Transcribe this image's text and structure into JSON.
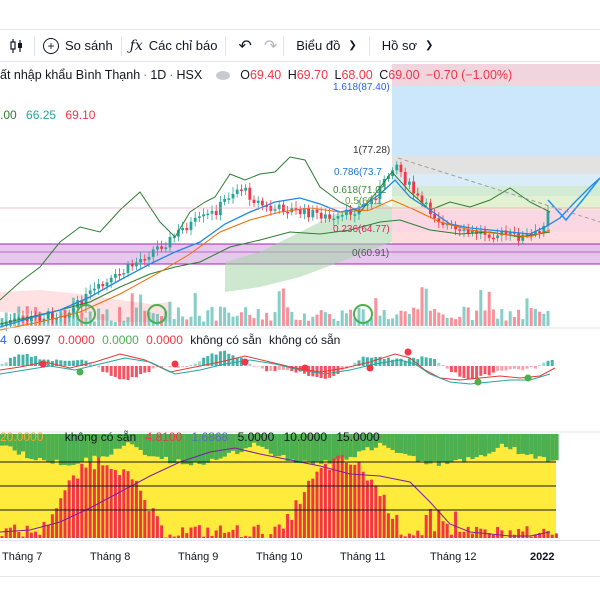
{
  "toolbar": {
    "compare_label": "So sánh",
    "indicators_label": "Các chỉ báo",
    "chart_type_label": "Biểu đồ",
    "profile_label": "Hồ sơ"
  },
  "legend": {
    "symbol_name": "ất nhập khẩu Bình Thạnh",
    "interval": "1D",
    "exchange": "HSX",
    "open_label": "O",
    "open": "69.40",
    "high_label": "H",
    "high": "69.70",
    "low_label": "L",
    "low": "68.00",
    "close_label": "C",
    "close": "69.00",
    "change": "−0.70 (−1.00%)"
  },
  "overlay_values": {
    "v1": ".00",
    "v2": "66.25",
    "v3": "69.10"
  },
  "fib_labels": {
    "f1618": "1.618(87.40)",
    "f1": "1(77.28)",
    "f786": "0.786(73.7",
    "f618": "0.618(71.02",
    "f5": "0.5(69.1",
    "f236": "0.236(64.77)",
    "f0": "0(60.91)"
  },
  "macd_legend": {
    "a": "4",
    "b": "0.6997",
    "c": "0.0000",
    "d": "0.0000",
    "e": "0.0000",
    "f": "không có sẵn",
    "g": "không có sẵn"
  },
  "osc_legend": {
    "a": "20.0000",
    "b": "không có sẵn",
    "c": "4.8100",
    "d": "1.6868",
    "e": "5.0000",
    "f": "10.0000",
    "g": "15.0000"
  },
  "x_axis": {
    "labels": [
      "Tháng 7",
      "Tháng 8",
      "Tháng 9",
      "Tháng 10",
      "Tháng 11",
      "Tháng 12",
      "2022"
    ]
  },
  "colors": {
    "up": "#26a69a",
    "down": "#f23645",
    "fib_blue": "#2962ff",
    "purple_band": "#9c27b0",
    "osc_green": "#4caf50",
    "osc_yellow": "#ffeb3b",
    "osc_red": "#f23645"
  }
}
